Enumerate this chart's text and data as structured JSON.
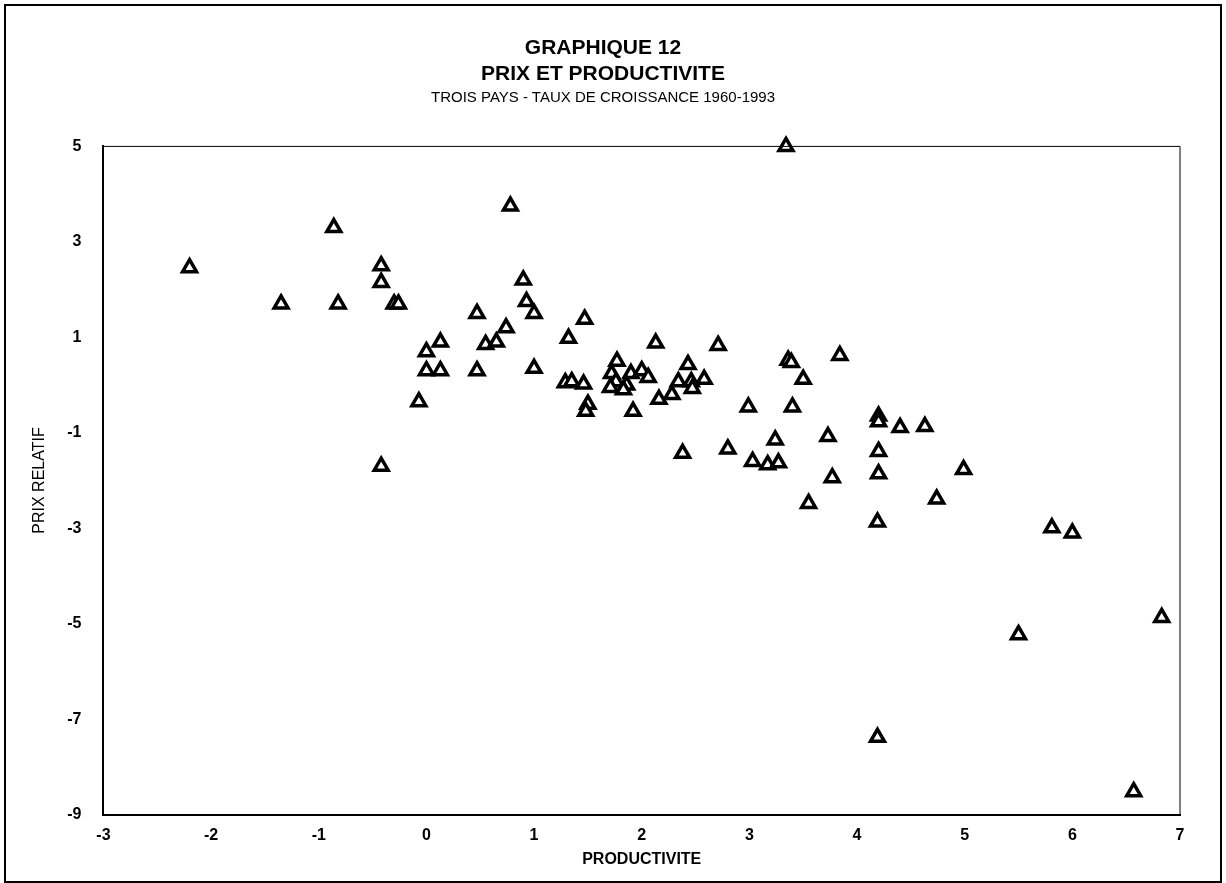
{
  "chart_data": {
    "type": "scatter",
    "title": "GRAPHIQUE 12\nPRIX ET PRODUCTIVITE",
    "subtitle": "TROIS PAYS - TAUX DE CROISSANCE 1960-1993",
    "xlabel": "PRODUCTIVITE",
    "ylabel": "PRIX RELATIF",
    "xlim": [
      -3,
      7
    ],
    "xticks": [
      -3,
      -2,
      -1,
      0,
      1,
      2,
      3,
      4,
      5,
      6,
      7
    ],
    "ylim": [
      -9,
      5
    ],
    "yticks": [
      -9,
      -7,
      -5,
      -3,
      -1,
      1,
      3,
      5
    ],
    "grid": false,
    "legend": false,
    "marker": "triangle",
    "series": [
      {
        "color": "#000000",
        "x": [
          -2.2,
          -1.35,
          -0.86,
          -0.82,
          -0.42,
          -0.42,
          -0.3,
          -0.26,
          -0.42,
          -0.07,
          0.0,
          0.0,
          0.13,
          0.13,
          0.47,
          0.47,
          0.55,
          0.65,
          0.74,
          0.78,
          0.9,
          0.93,
          1.0,
          1.0,
          1.47,
          1.32,
          1.29,
          1.35,
          1.46,
          1.5,
          1.48,
          1.77,
          1.72,
          1.76,
          1.71,
          1.9,
          1.86,
          1.83,
          2.0,
          2.06,
          1.92,
          2.13,
          2.16,
          2.28,
          2.34,
          2.43,
          2.46,
          2.47,
          2.58,
          2.71,
          2.38,
          2.8,
          2.99,
          3.03,
          3.17,
          3.27,
          3.24,
          3.36,
          3.39,
          3.5,
          3.4,
          3.84,
          3.73,
          3.77,
          3.55,
          4.2,
          4.2,
          4.4,
          4.63,
          4.2,
          4.2,
          4.19,
          4.99,
          4.74,
          5.81,
          6.0,
          5.5,
          6.83,
          4.19,
          6.57,
          3.34
        ],
        "values": [
          2.46,
          1.7,
          3.3,
          1.7,
          2.5,
          2.15,
          1.7,
          1.7,
          -1.7,
          -0.35,
          0.7,
          0.3,
          0.9,
          0.3,
          1.5,
          0.3,
          0.85,
          0.9,
          1.2,
          3.75,
          2.2,
          1.75,
          1.5,
          0.35,
          1.38,
          0.98,
          0.05,
          0.07,
          0.02,
          -0.4,
          -0.55,
          0.5,
          0.24,
          0.07,
          -0.05,
          0.24,
          0.0,
          -0.1,
          0.3,
          0.16,
          -0.55,
          0.88,
          -0.3,
          -0.2,
          0.07,
          0.43,
          0.07,
          -0.07,
          0.12,
          0.83,
          -1.43,
          -1.34,
          -0.46,
          -1.6,
          -1.67,
          -1.63,
          -1.15,
          0.52,
          0.47,
          0.12,
          -0.46,
          0.62,
          -1.08,
          -1.94,
          -2.48,
          -0.65,
          -0.77,
          -0.89,
          -0.87,
          -1.39,
          -1.86,
          -2.87,
          -1.77,
          -2.39,
          -2.99,
          -3.1,
          -5.23,
          -4.87,
          -7.38,
          -8.52,
          5.0
        ]
      }
    ]
  }
}
